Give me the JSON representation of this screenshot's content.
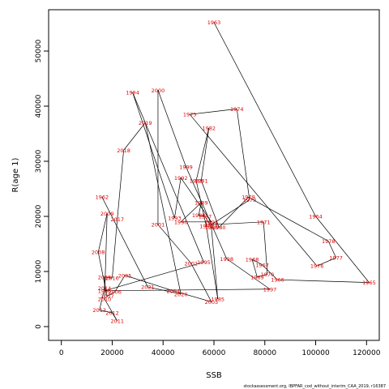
{
  "chart_data": {
    "type": "line",
    "xlabel": "SSB",
    "ylabel": "R(age 1)",
    "xlim": [
      -5000,
      125000
    ],
    "ylim": [
      -2500,
      57500
    ],
    "x_ticks": [
      0,
      20000,
      40000,
      60000,
      80000,
      100000,
      120000
    ],
    "y_ticks": [
      0,
      10000,
      20000,
      30000,
      40000,
      50000
    ],
    "caption": "stockassessment.org, IBPFAR_cod_without_interim_CAA_2019, r16387",
    "grid": false,
    "line_color": "#000000",
    "label_color": "#e00000",
    "series": [
      {
        "points": [
          {
            "year": "1963",
            "x": 60000,
            "y": 55200
          },
          {
            "year": "1964",
            "x": 100000,
            "y": 20000
          },
          {
            "year": "1965",
            "x": 121000,
            "y": 8000
          },
          {
            "year": "1966",
            "x": 85000,
            "y": 8500
          },
          {
            "year": "1967",
            "x": 79000,
            "y": 11200
          },
          {
            "year": "1968",
            "x": 75000,
            "y": 12200
          },
          {
            "year": "1969",
            "x": 77000,
            "y": 9000
          },
          {
            "year": "1970",
            "x": 81000,
            "y": 9500
          },
          {
            "year": "1971",
            "x": 79500,
            "y": 19000
          },
          {
            "year": "1972",
            "x": 59000,
            "y": 18500
          },
          {
            "year": "1973",
            "x": 74000,
            "y": 23000
          },
          {
            "year": "1974",
            "x": 69000,
            "y": 39500
          },
          {
            "year": "1975",
            "x": 50500,
            "y": 38500
          },
          {
            "year": "1976",
            "x": 100500,
            "y": 11000
          },
          {
            "year": "1977",
            "x": 108000,
            "y": 12500
          },
          {
            "year": "1978",
            "x": 105000,
            "y": 15500
          },
          {
            "year": "1979",
            "x": 73500,
            "y": 23500
          },
          {
            "year": "1980",
            "x": 62000,
            "y": 18000
          },
          {
            "year": "1981",
            "x": 55000,
            "y": 26500
          },
          {
            "year": "1982",
            "x": 58000,
            "y": 36000
          },
          {
            "year": "1983",
            "x": 53000,
            "y": 26500
          },
          {
            "year": "1984",
            "x": 57000,
            "y": 18200
          },
          {
            "year": "1985",
            "x": 61500,
            "y": 5000
          },
          {
            "year": "1986",
            "x": 59000,
            "y": 18000
          },
          {
            "year": "1987",
            "x": 56500,
            "y": 20000
          },
          {
            "year": "1988",
            "x": 54000,
            "y": 20200
          },
          {
            "year": "1989",
            "x": 55000,
            "y": 22500
          },
          {
            "year": "1990",
            "x": 47000,
            "y": 19000
          },
          {
            "year": "1991",
            "x": 59000,
            "y": 19000
          },
          {
            "year": "1992",
            "x": 47000,
            "y": 27000
          },
          {
            "year": "1993",
            "x": 44500,
            "y": 19700
          },
          {
            "year": "1994",
            "x": 28000,
            "y": 42500
          },
          {
            "year": "1995",
            "x": 56000,
            "y": 11700
          },
          {
            "year": "1996",
            "x": 17000,
            "y": 6500
          },
          {
            "year": "1997",
            "x": 82000,
            "y": 6800
          },
          {
            "year": "1998",
            "x": 65000,
            "y": 12300
          },
          {
            "year": "1999",
            "x": 49000,
            "y": 29000
          },
          {
            "year": "2000",
            "x": 38000,
            "y": 42900
          },
          {
            "year": "2001",
            "x": 38000,
            "y": 18500
          },
          {
            "year": "2002",
            "x": 51000,
            "y": 11500
          },
          {
            "year": "2003",
            "x": 59000,
            "y": 4500
          },
          {
            "year": "2004",
            "x": 44000,
            "y": 6500
          },
          {
            "year": "2005",
            "x": 25000,
            "y": 9300
          },
          {
            "year": "2006",
            "x": 21000,
            "y": 6300
          },
          {
            "year": "2007",
            "x": 18000,
            "y": 5500
          },
          {
            "year": "2008",
            "x": 14500,
            "y": 13500
          },
          {
            "year": "2009",
            "x": 18000,
            "y": 20500
          },
          {
            "year": "2010",
            "x": 17000,
            "y": 5000
          },
          {
            "year": "2011",
            "x": 22000,
            "y": 1000
          },
          {
            "year": "2012",
            "x": 20000,
            "y": 2500
          },
          {
            "year": "2013",
            "x": 15000,
            "y": 3000
          },
          {
            "year": "2014",
            "x": 17000,
            "y": 7000
          },
          {
            "year": "2015",
            "x": 17000,
            "y": 9000
          },
          {
            "year": "2016",
            "x": 20000,
            "y": 8800
          },
          {
            "year": "2017",
            "x": 22000,
            "y": 19500
          },
          {
            "year": "2018",
            "x": 24500,
            "y": 32000
          },
          {
            "year": "2019",
            "x": 33000,
            "y": 37000
          },
          {
            "year": "2020",
            "x": 47000,
            "y": 5900
          },
          {
            "year": "2021",
            "x": 34000,
            "y": 7200
          },
          {
            "year": "1962",
            "x": 16000,
            "y": 23500
          }
        ]
      }
    ]
  }
}
